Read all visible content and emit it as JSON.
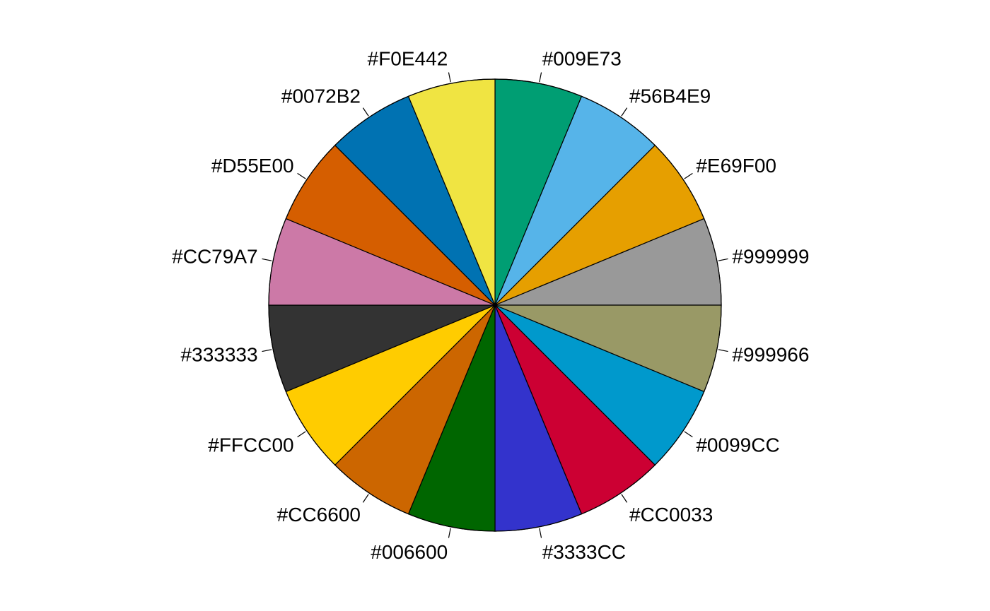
{
  "chart_data": {
    "type": "pie",
    "title": "",
    "legend": "none",
    "start": "top",
    "direction": "clockwise",
    "slices": [
      {
        "label": "#009E73",
        "value": 1,
        "color": "#009E73"
      },
      {
        "label": "#56B4E9",
        "value": 1,
        "color": "#56B4E9"
      },
      {
        "label": "#E69F00",
        "value": 1,
        "color": "#E69F00"
      },
      {
        "label": "#999999",
        "value": 1,
        "color": "#999999"
      },
      {
        "label": "#999966",
        "value": 1,
        "color": "#999966"
      },
      {
        "label": "#0099CC",
        "value": 1,
        "color": "#0099CC"
      },
      {
        "label": "#CC0033",
        "value": 1,
        "color": "#CC0033"
      },
      {
        "label": "#3333CC",
        "value": 1,
        "color": "#3333CC"
      },
      {
        "label": "#006600",
        "value": 1,
        "color": "#006600"
      },
      {
        "label": "#CC6600",
        "value": 1,
        "color": "#CC6600"
      },
      {
        "label": "#FFCC00",
        "value": 1,
        "color": "#FFCC00"
      },
      {
        "label": "#333333",
        "value": 1,
        "color": "#333333"
      },
      {
        "label": "#CC79A7",
        "value": 1,
        "color": "#CC79A7"
      },
      {
        "label": "#D55E00",
        "value": 1,
        "color": "#D55E00"
      },
      {
        "label": "#0072B2",
        "value": 1,
        "color": "#0072B2"
      },
      {
        "label": "#F0E442",
        "value": 1,
        "color": "#F0E442"
      }
    ]
  }
}
